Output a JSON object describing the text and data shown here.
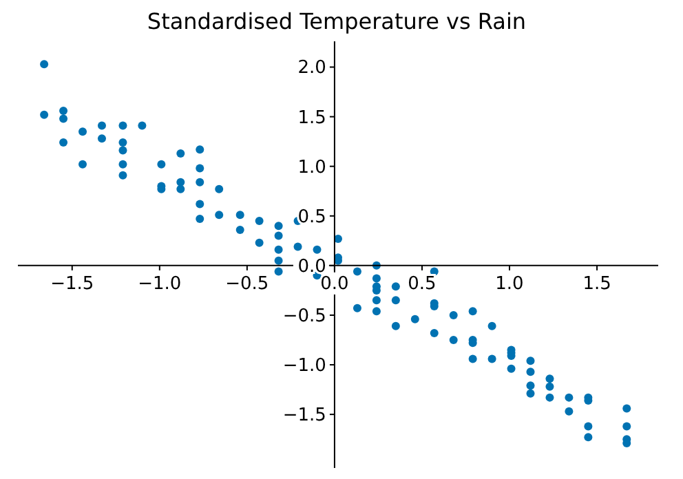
{
  "chart_data": {
    "type": "scatter",
    "title": "Standardised Temperature vs Rain",
    "x": [
      -1.66,
      -1.66,
      -1.55,
      -1.55,
      -1.55,
      -1.44,
      -1.44,
      -1.33,
      -1.33,
      -1.21,
      -1.21,
      -1.21,
      -1.21,
      -1.21,
      -1.1,
      -0.99,
      -0.99,
      -0.99,
      -0.88,
      -0.88,
      -0.88,
      -0.77,
      -0.77,
      -0.77,
      -0.77,
      -0.77,
      -0.66,
      -0.66,
      -0.54,
      -0.54,
      -0.43,
      -0.43,
      -0.32,
      -0.32,
      -0.32,
      -0.32,
      -0.32,
      -0.21,
      -0.21,
      -0.1,
      -0.1,
      0.02,
      0.02,
      0.02,
      0.13,
      0.13,
      0.24,
      0.24,
      0.24,
      0.24,
      0.24,
      0.24,
      0.35,
      0.35,
      0.35,
      0.46,
      0.57,
      0.57,
      0.57,
      0.57,
      0.68,
      0.68,
      0.79,
      0.79,
      0.79,
      0.79,
      0.9,
      0.9,
      1.01,
      1.01,
      1.01,
      1.01,
      1.12,
      1.12,
      1.12,
      1.12,
      1.23,
      1.23,
      1.23,
      1.34,
      1.34,
      1.45,
      1.45,
      1.45,
      1.45,
      1.67,
      1.67,
      1.67,
      1.67
    ],
    "values": [
      2.03,
      1.52,
      1.56,
      1.48,
      1.24,
      1.35,
      1.02,
      1.41,
      1.28,
      1.41,
      1.24,
      1.16,
      1.02,
      0.91,
      1.41,
      1.02,
      0.8,
      0.77,
      1.13,
      0.84,
      0.77,
      1.17,
      0.98,
      0.84,
      0.62,
      0.47,
      0.77,
      0.51,
      0.51,
      0.36,
      0.45,
      0.23,
      0.4,
      0.3,
      0.16,
      0.05,
      -0.06,
      0.45,
      0.19,
      0.16,
      -0.1,
      0.27,
      0.08,
      0.05,
      -0.06,
      -0.43,
      0.0,
      -0.13,
      -0.21,
      -0.25,
      -0.35,
      -0.46,
      -0.21,
      -0.35,
      -0.61,
      -0.54,
      -0.06,
      -0.38,
      -0.41,
      -0.68,
      -0.5,
      -0.75,
      -0.46,
      -0.75,
      -0.78,
      -0.94,
      -0.61,
      -0.94,
      -0.85,
      -0.88,
      -0.91,
      -1.04,
      -0.96,
      -1.07,
      -1.21,
      -1.29,
      -1.14,
      -1.22,
      -1.33,
      -1.33,
      -1.47,
      -1.33,
      -1.36,
      -1.62,
      -1.73,
      -1.44,
      -1.62,
      -1.75,
      -1.79
    ],
    "color": "#0072b2",
    "marker": "circle",
    "xlim": [
      -1.81,
      1.85
    ],
    "ylim": [
      -2.04,
      2.26
    ],
    "xticks": [
      {
        "value": -1.5,
        "label": "−1.5"
      },
      {
        "value": -1,
        "label": "−1.0"
      },
      {
        "value": -0.5,
        "label": "−0.5"
      },
      {
        "value": 0,
        "label": "0.0"
      },
      {
        "value": 0.5,
        "label": "0.5"
      },
      {
        "value": 1,
        "label": "1.0"
      },
      {
        "value": 1.5,
        "label": "1.5"
      }
    ],
    "yticks": [
      {
        "value": -1.5,
        "label": "−1.5"
      },
      {
        "value": -1,
        "label": "−1.0"
      },
      {
        "value": -0.5,
        "label": "−0.5"
      },
      {
        "value": 0,
        "label": "0.0"
      },
      {
        "value": 0.5,
        "label": "0.5"
      },
      {
        "value": 1,
        "label": "1.0"
      },
      {
        "value": 1.5,
        "label": "1.5"
      },
      {
        "value": 2,
        "label": "2.0"
      }
    ]
  }
}
